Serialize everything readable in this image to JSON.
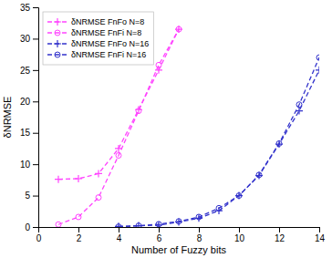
{
  "chart_data": {
    "type": "line",
    "title": "",
    "xlabel": "Number of Fuzzy bits",
    "ylabel": "δNRMSE",
    "xlim": [
      0,
      14
    ],
    "ylim": [
      0,
      35
    ],
    "xticks": [
      0,
      2,
      4,
      6,
      8,
      10,
      12,
      14
    ],
    "yticks": [
      0,
      5,
      10,
      15,
      20,
      25,
      30,
      35
    ],
    "grid": false,
    "legend": "upper left",
    "series": [
      {
        "name": "δNRMSE FnFo N=8",
        "color": "#FF44FF",
        "marker": "plus",
        "line_style": "dashed",
        "x": [
          1,
          2,
          3,
          4,
          5,
          6,
          7
        ],
        "values": [
          7.6,
          7.7,
          8.5,
          12.5,
          18.7,
          25.0,
          31.5
        ]
      },
      {
        "name": "δNRMSE FnFi N=8",
        "color": "#FF44FF",
        "marker": "circle",
        "line_style": "dashed",
        "x": [
          1,
          2,
          3,
          4,
          5,
          6,
          7
        ],
        "values": [
          0.4,
          1.6,
          4.7,
          11.4,
          18.5,
          25.8,
          31.5
        ]
      },
      {
        "name": "δNRMSE FnFo N=16",
        "color": "#3333CC",
        "marker": "plus",
        "line_style": "dashed",
        "x": [
          4,
          5,
          6,
          7,
          8,
          9,
          10,
          11,
          12,
          13,
          14
        ],
        "values": [
          0.1,
          0.2,
          0.3,
          0.8,
          1.4,
          2.6,
          5.0,
          8.2,
          13.2,
          18.5,
          25.0
        ]
      },
      {
        "name": "δNRMSE FnFi N=16",
        "color": "#3333CC",
        "marker": "circle",
        "line_style": "dashed",
        "x": [
          4,
          5,
          6,
          7,
          8,
          9,
          10,
          11,
          12,
          13,
          14
        ],
        "values": [
          0.05,
          0.2,
          0.45,
          0.9,
          1.6,
          3.0,
          5.0,
          8.3,
          13.3,
          19.5,
          27.0
        ]
      }
    ]
  }
}
